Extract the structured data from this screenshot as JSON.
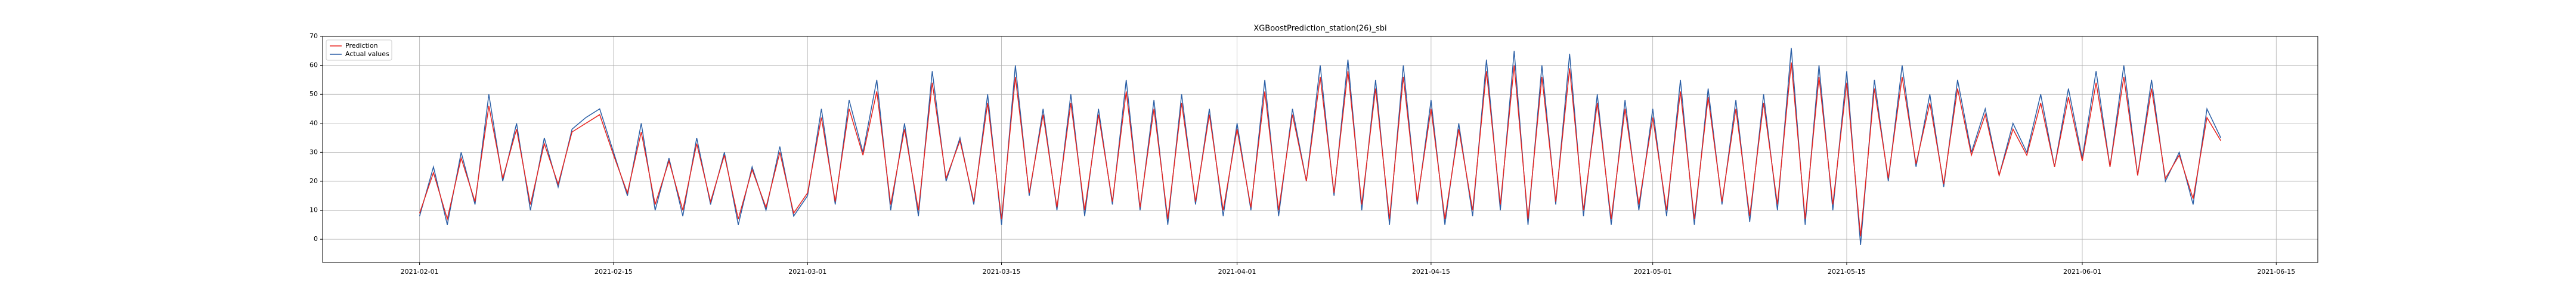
{
  "chart_data": {
    "type": "line",
    "title": "XGBoostPrediction_station(26)_sbi",
    "x": [
      "2021-02-01",
      "2021-02-02",
      "2021-02-03",
      "2021-02-04",
      "2021-02-05",
      "2021-02-06",
      "2021-02-07",
      "2021-02-08",
      "2021-02-09",
      "2021-02-10",
      "2021-02-11",
      "2021-02-12",
      "2021-02-13",
      "2021-02-14",
      "2021-02-15",
      "2021-02-16",
      "2021-02-17",
      "2021-02-18",
      "2021-02-19",
      "2021-02-20",
      "2021-02-21",
      "2021-02-22",
      "2021-02-23",
      "2021-02-24",
      "2021-02-25",
      "2021-02-26",
      "2021-02-27",
      "2021-02-28",
      "2021-03-01",
      "2021-03-02",
      "2021-03-03",
      "2021-03-04",
      "2021-03-05",
      "2021-03-06",
      "2021-03-07",
      "2021-03-08",
      "2021-03-09",
      "2021-03-10",
      "2021-03-11",
      "2021-03-12",
      "2021-03-13",
      "2021-03-14",
      "2021-03-15",
      "2021-03-16",
      "2021-03-17",
      "2021-03-18",
      "2021-03-19",
      "2021-03-20",
      "2021-03-21",
      "2021-03-22",
      "2021-03-23",
      "2021-03-24",
      "2021-03-25",
      "2021-03-26",
      "2021-03-27",
      "2021-03-28",
      "2021-03-29",
      "2021-03-30",
      "2021-03-31",
      "2021-04-01",
      "2021-04-02",
      "2021-04-03",
      "2021-04-04",
      "2021-04-05",
      "2021-04-06",
      "2021-04-07",
      "2021-04-08",
      "2021-04-09",
      "2021-04-10",
      "2021-04-11",
      "2021-04-12",
      "2021-04-13",
      "2021-04-14",
      "2021-04-15",
      "2021-04-16",
      "2021-04-17",
      "2021-04-18",
      "2021-04-19",
      "2021-04-20",
      "2021-04-21",
      "2021-04-22",
      "2021-04-23",
      "2021-04-24",
      "2021-04-25",
      "2021-04-26",
      "2021-04-27",
      "2021-04-28",
      "2021-04-29",
      "2021-04-30",
      "2021-05-01",
      "2021-05-02",
      "2021-05-03",
      "2021-05-04",
      "2021-05-05",
      "2021-05-06",
      "2021-05-07",
      "2021-05-08",
      "2021-05-09",
      "2021-05-10",
      "2021-05-11",
      "2021-05-12",
      "2021-05-13",
      "2021-05-14",
      "2021-05-15",
      "2021-05-16",
      "2021-05-17",
      "2021-05-18",
      "2021-05-19",
      "2021-05-20",
      "2021-05-21",
      "2021-05-22",
      "2021-05-23",
      "2021-05-24",
      "2021-05-25",
      "2021-05-26",
      "2021-05-27",
      "2021-05-28",
      "2021-05-29",
      "2021-05-30",
      "2021-05-31",
      "2021-06-01",
      "2021-06-02",
      "2021-06-03",
      "2021-06-04",
      "2021-06-05",
      "2021-06-06",
      "2021-06-07",
      "2021-06-08",
      "2021-06-09",
      "2021-06-10",
      "2021-06-11"
    ],
    "series": [
      {
        "name": "Prediction",
        "color": "#e8231e",
        "values": [
          9,
          23,
          7,
          28,
          13,
          46,
          21,
          38,
          12,
          33,
          19,
          37,
          40,
          43,
          29,
          16,
          37,
          12,
          27,
          10,
          33,
          13,
          29,
          7,
          24,
          11,
          30,
          9,
          16,
          42,
          13,
          45,
          29,
          51,
          12,
          38,
          10,
          54,
          21,
          34,
          13,
          47,
          7,
          56,
          16,
          43,
          11,
          47,
          10,
          43,
          13,
          51,
          11,
          45,
          7,
          47,
          13,
          43,
          10,
          38,
          11,
          51,
          10,
          43,
          20,
          56,
          16,
          58,
          12,
          52,
          7,
          56,
          13,
          45,
          7,
          38,
          10,
          58,
          12,
          60,
          7,
          56,
          13,
          59,
          10,
          47,
          7,
          45,
          12,
          42,
          10,
          51,
          7,
          49,
          13,
          45,
          8,
          47,
          12,
          61,
          7,
          56,
          12,
          54,
          1,
          52,
          21,
          56,
          26,
          47,
          19,
          52,
          29,
          43,
          22,
          38,
          29,
          47,
          25,
          49,
          27,
          54,
          25,
          56,
          22,
          52,
          21,
          29,
          14,
          42,
          34
        ]
      },
      {
        "name": "Actual values",
        "color": "#2b5fa6",
        "values": [
          8,
          25,
          5,
          30,
          12,
          50,
          20,
          40,
          10,
          35,
          18,
          38,
          42,
          45,
          30,
          15,
          40,
          10,
          28,
          8,
          35,
          12,
          30,
          5,
          25,
          10,
          32,
          8,
          15,
          45,
          12,
          48,
          30,
          55,
          10,
          40,
          8,
          58,
          20,
          35,
          12,
          50,
          5,
          60,
          15,
          45,
          10,
          50,
          8,
          45,
          12,
          55,
          10,
          48,
          5,
          50,
          12,
          45,
          8,
          40,
          10,
          55,
          8,
          45,
          20,
          60,
          15,
          62,
          10,
          55,
          5,
          60,
          12,
          48,
          5,
          40,
          8,
          62,
          10,
          65,
          5,
          60,
          12,
          64,
          8,
          50,
          5,
          48,
          10,
          45,
          8,
          55,
          5,
          52,
          12,
          48,
          6,
          50,
          10,
          66,
          5,
          60,
          10,
          58,
          -2,
          55,
          20,
          60,
          25,
          50,
          18,
          55,
          30,
          45,
          22,
          40,
          30,
          50,
          25,
          52,
          28,
          58,
          25,
          60,
          22,
          55,
          20,
          30,
          12,
          45,
          35
        ]
      }
    ],
    "xlim": [
      "2021-01-25",
      "2021-06-18"
    ],
    "xticks": [
      "2021-02-01",
      "2021-02-15",
      "2021-03-01",
      "2021-03-15",
      "2021-04-01",
      "2021-04-15",
      "2021-05-01",
      "2021-05-15",
      "2021-06-01",
      "2021-06-15"
    ],
    "ylim": [
      -8,
      70
    ],
    "yticks": [
      0,
      10,
      20,
      30,
      40,
      50,
      60,
      70
    ],
    "grid": true,
    "legend": "upper-left"
  }
}
